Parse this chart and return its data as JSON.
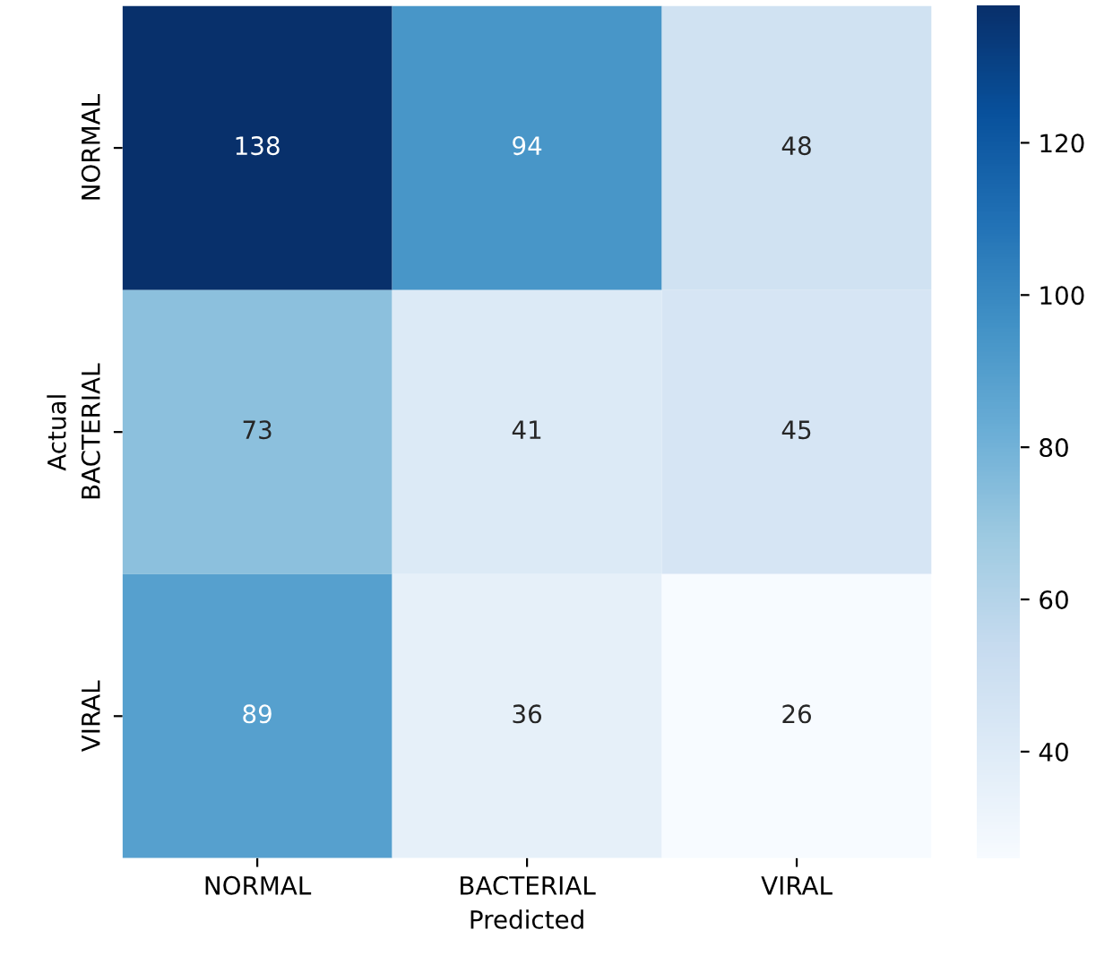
{
  "chart_data": {
    "type": "heatmap",
    "xlabel": "Predicted",
    "ylabel": "Actual",
    "categories": [
      "NORMAL",
      "BACTERIAL",
      "VIRAL"
    ],
    "y_categories": [
      "NORMAL",
      "BACTERIAL",
      "VIRAL"
    ],
    "cells": [
      [
        138,
        94,
        48
      ],
      [
        73,
        41,
        45
      ],
      [
        89,
        36,
        26
      ]
    ],
    "clim": [
      26,
      138
    ],
    "cticks": [
      40,
      60,
      80,
      100,
      120
    ],
    "data_labels": true
  }
}
